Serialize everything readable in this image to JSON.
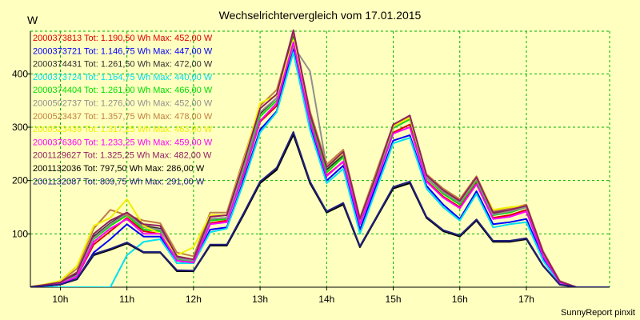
{
  "chart_data": {
    "type": "line",
    "title": "Wechselrichtervergleich vom 17.01.2015",
    "ylabel": "W",
    "footer": "SunnyReport pinxit",
    "x_ticks": [
      "10h",
      "11h",
      "12h",
      "13h",
      "14h",
      "15h",
      "16h",
      "17h"
    ],
    "y_ticks": [
      "100",
      "200",
      "300",
      "400"
    ],
    "xlim": [
      9.55,
      18.25
    ],
    "ylim": [
      0,
      480
    ],
    "grid": true,
    "legend_position": "top-left",
    "x": [
      9.5,
      9.75,
      10.0,
      10.25,
      10.5,
      10.75,
      11.0,
      11.25,
      11.5,
      11.75,
      12.0,
      12.25,
      12.5,
      12.75,
      13.0,
      13.25,
      13.5,
      13.75,
      14.0,
      14.25,
      14.5,
      14.75,
      15.0,
      15.25,
      15.5,
      15.75,
      16.0,
      16.25,
      16.5,
      16.75,
      17.0,
      17.25,
      17.5,
      17.75,
      18.0,
      18.25
    ],
    "series": [
      {
        "name": "2000373813",
        "legend": "2000373813 Tot: 1.190,50 Wh Max: 452,00 W",
        "color": "#e00000",
        "values": [
          0,
          2,
          6,
          20,
          80,
          105,
          130,
          105,
          100,
          50,
          45,
          120,
          125,
          210,
          310,
          340,
          455,
          310,
          210,
          235,
          120,
          200,
          290,
          305,
          200,
          170,
          150,
          195,
          130,
          135,
          145,
          60,
          10,
          0,
          0,
          0
        ]
      },
      {
        "name": "2000373721",
        "legend": "2000373721 Tot: 1.146,75 Wh Max: 447,00 W",
        "color": "#0000ff",
        "values": [
          0,
          2,
          5,
          15,
          65,
          90,
          118,
          95,
          95,
          45,
          45,
          108,
          112,
          200,
          295,
          330,
          450,
          300,
          200,
          228,
          108,
          192,
          275,
          285,
          190,
          155,
          128,
          180,
          118,
          122,
          128,
          55,
          8,
          0,
          0,
          0
        ]
      },
      {
        "name": "2000374431",
        "legend": "2000374431 Tot: 1.261,50 Wh Max: 472,00 W",
        "color": "#303030",
        "values": [
          0,
          3,
          7,
          25,
          95,
          120,
          140,
          115,
          110,
          55,
          50,
          128,
          130,
          225,
          325,
          355,
          470,
          320,
          220,
          248,
          125,
          210,
          300,
          320,
          208,
          180,
          160,
          205,
          138,
          142,
          152,
          65,
          11,
          0,
          0,
          0
        ]
      },
      {
        "name": "2000373724",
        "legend": "2000373724 Tot: 1.164,75 Wh Max: 440,00 W",
        "color": "#00e0f0",
        "values": [
          0,
          0,
          0,
          0,
          0,
          0,
          60,
          85,
          90,
          45,
          45,
          103,
          110,
          195,
          290,
          328,
          440,
          295,
          195,
          222,
          100,
          185,
          270,
          280,
          185,
          150,
          125,
          175,
          112,
          118,
          122,
          50,
          6,
          0,
          0,
          0
        ]
      },
      {
        "name": "2000374404",
        "legend": "2000374404 Tot: 1.261,00 Wh Max: 466,00 W",
        "color": "#00e000",
        "values": [
          0,
          3,
          7,
          22,
          90,
          115,
          135,
          108,
          105,
          52,
          48,
          125,
          128,
          220,
          320,
          350,
          466,
          315,
          215,
          244,
          122,
          205,
          298,
          315,
          205,
          175,
          155,
          200,
          135,
          140,
          150,
          62,
          10,
          0,
          0,
          0
        ]
      },
      {
        "name": "2000502737",
        "legend": "2000502737 Tot: 1.276,00 Wh Max: 452,00 W",
        "color": "#909090",
        "values": [
          0,
          3,
          7,
          22,
          92,
          118,
          138,
          112,
          108,
          54,
          50,
          128,
          130,
          225,
          328,
          355,
          452,
          405,
          225,
          250,
          125,
          210,
          300,
          318,
          206,
          178,
          158,
          203,
          136,
          142,
          150,
          63,
          10,
          0,
          0,
          0
        ]
      },
      {
        "name": "2000523437",
        "legend": "2000523437 Tot: 1.357,75 Wh Max: 478,00 W",
        "color": "#c08040",
        "values": [
          0,
          4,
          10,
          35,
          110,
          145,
          135,
          125,
          120,
          65,
          58,
          140,
          140,
          240,
          340,
          370,
          478,
          330,
          230,
          258,
          130,
          218,
          305,
          320,
          212,
          185,
          165,
          208,
          142,
          148,
          155,
          68,
          12,
          0,
          0,
          0
        ]
      },
      {
        "name": "2000523439",
        "legend": "2000523439 Tot: 1.317,25 Wh Max: 463,00 W",
        "color": "#f0f000",
        "values": [
          0,
          5,
          12,
          40,
          115,
          130,
          165,
          115,
          100,
          60,
          75,
          135,
          135,
          235,
          345,
          360,
          463,
          325,
          225,
          252,
          128,
          212,
          302,
          318,
          210,
          182,
          162,
          205,
          145,
          150,
          153,
          66,
          11,
          0,
          0,
          0
        ]
      },
      {
        "name": "2000376360",
        "legend": "2000376360 Tot: 1.233,25 Wh Max: 459,00 W",
        "color": "#ff00ff",
        "values": [
          0,
          3,
          6,
          20,
          85,
          110,
          128,
          100,
          100,
          50,
          46,
          118,
          122,
          212,
          312,
          345,
          459,
          310,
          208,
          236,
          118,
          200,
          288,
          300,
          198,
          168,
          148,
          193,
          128,
          132,
          142,
          58,
          9,
          0,
          0,
          0
        ]
      },
      {
        "name": "2001129627",
        "legend": "2001129627 Tot: 1.325,25 Wh Max: 482,00 W",
        "color": "#902060",
        "values": [
          0,
          4,
          9,
          28,
          100,
          125,
          140,
          118,
          115,
          58,
          52,
          132,
          135,
          232,
          335,
          362,
          482,
          325,
          225,
          254,
          128,
          212,
          305,
          322,
          210,
          182,
          162,
          206,
          140,
          145,
          153,
          66,
          11,
          0,
          0,
          0
        ]
      },
      {
        "name": "2001132036",
        "legend": "2001132036 Tot: 797,50 Wh Max: 286,00 W",
        "color": "#000000",
        "values": [
          0,
          2,
          5,
          15,
          60,
          70,
          82,
          65,
          65,
          30,
          30,
          78,
          78,
          135,
          195,
          220,
          286,
          195,
          140,
          155,
          75,
          130,
          185,
          195,
          130,
          105,
          95,
          125,
          85,
          85,
          90,
          40,
          5,
          0,
          0,
          0
        ]
      },
      {
        "name": "2001132087",
        "legend": "2001132087 Tot: 809,75 Wh Max: 291,00 W",
        "color": "#202080",
        "values": [
          0,
          2,
          5,
          16,
          62,
          72,
          84,
          66,
          66,
          32,
          31,
          80,
          80,
          138,
          198,
          224,
          291,
          198,
          142,
          158,
          77,
          132,
          188,
          198,
          132,
          107,
          97,
          127,
          87,
          87,
          92,
          41,
          5,
          0,
          0,
          0
        ]
      }
    ]
  }
}
